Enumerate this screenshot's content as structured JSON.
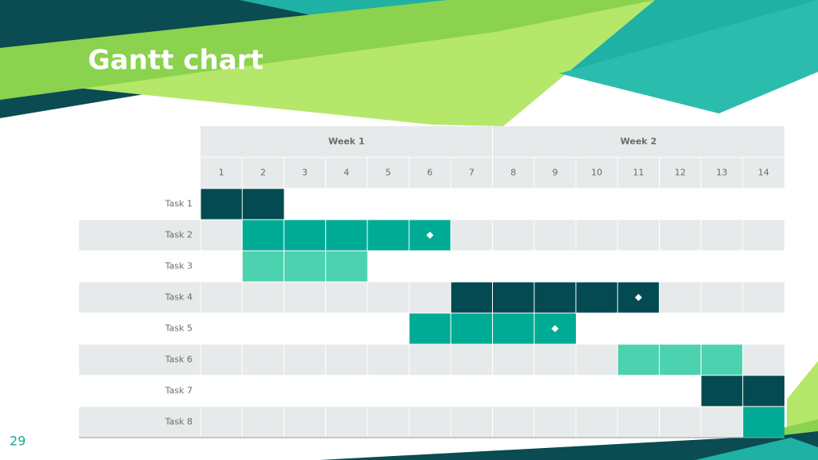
{
  "title": "Gantt chart",
  "page_number": "29",
  "table": {
    "weeks": [
      "Week 1",
      "Week 2"
    ],
    "days": [
      "1",
      "2",
      "3",
      "4",
      "5",
      "6",
      "7",
      "8",
      "9",
      "10",
      "11",
      "12",
      "13",
      "14"
    ],
    "tasks": [
      {
        "label": "Task 1",
        "start": 1,
        "end": 2,
        "color": "#034a52",
        "milestone": null
      },
      {
        "label": "Task 2",
        "start": 2,
        "end": 6,
        "color": "#00ab96",
        "milestone": 6
      },
      {
        "label": "Task 3",
        "start": 2,
        "end": 4,
        "color": "#4dd2b0",
        "milestone": null
      },
      {
        "label": "Task 4",
        "start": 7,
        "end": 11,
        "color": "#034a52",
        "milestone": 11
      },
      {
        "label": "Task 5",
        "start": 6,
        "end": 9,
        "color": "#00ab96",
        "milestone": 9
      },
      {
        "label": "Task 6",
        "start": 11,
        "end": 13,
        "color": "#4dd2b0",
        "milestone": null
      },
      {
        "label": "Task 7",
        "start": 13,
        "end": 14,
        "color": "#034a52",
        "milestone": null
      },
      {
        "label": "Task 8",
        "start": 14,
        "end": 14,
        "color": "#00ab96",
        "milestone": null
      }
    ]
  }
}
